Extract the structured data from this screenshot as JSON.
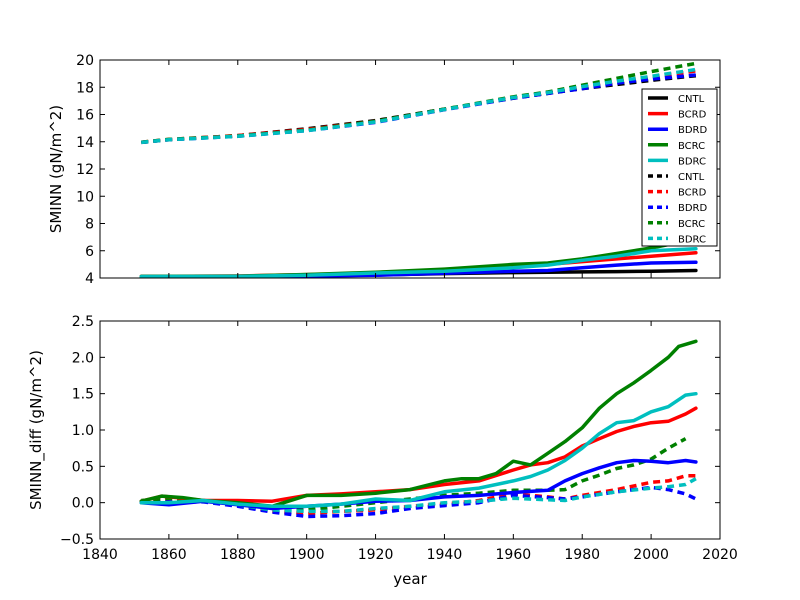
{
  "chart_data": [
    {
      "type": "line",
      "ylabel": "SMINN (gN/m^2)",
      "xlim": [
        1840,
        2020
      ],
      "ylim": [
        4,
        20
      ],
      "yticks": [
        4,
        6,
        8,
        10,
        12,
        14,
        16,
        18,
        20
      ],
      "ytick_labels": [
        "4",
        "6",
        "8",
        "10",
        "12",
        "14",
        "16",
        "18",
        "20"
      ],
      "legend": {
        "position": "right"
      },
      "series": [
        {
          "name": "CNTL",
          "color": "#000000",
          "style": "solid",
          "x": [
            1852,
            1880,
            1900,
            1920,
            1940,
            1960,
            1970,
            1980,
            1990,
            2000,
            2013
          ],
          "y": [
            4.1,
            4.12,
            4.15,
            4.22,
            4.32,
            4.4,
            4.42,
            4.45,
            4.47,
            4.5,
            4.55
          ]
        },
        {
          "name": "BCRD",
          "color": "#ff0000",
          "style": "solid",
          "x": [
            1852,
            1880,
            1900,
            1920,
            1940,
            1960,
            1970,
            1980,
            1990,
            2000,
            2013
          ],
          "y": [
            4.12,
            4.15,
            4.25,
            4.37,
            4.6,
            4.9,
            5.0,
            5.2,
            5.4,
            5.6,
            5.85
          ]
        },
        {
          "name": "BDRD",
          "color": "#0000ff",
          "style": "solid",
          "x": [
            1852,
            1880,
            1900,
            1920,
            1940,
            1960,
            1970,
            1980,
            1990,
            2000,
            2013
          ],
          "y": [
            4.1,
            4.11,
            4.15,
            4.2,
            4.35,
            4.5,
            4.55,
            4.75,
            4.95,
            5.1,
            5.15
          ]
        },
        {
          "name": "BCRC",
          "color": "#008000",
          "style": "solid",
          "x": [
            1852,
            1880,
            1900,
            1920,
            1940,
            1960,
            1970,
            1980,
            1990,
            2000,
            2013
          ],
          "y": [
            4.12,
            4.14,
            4.26,
            4.42,
            4.65,
            5.0,
            5.1,
            5.4,
            5.8,
            6.2,
            6.85
          ]
        },
        {
          "name": "BDRC",
          "color": "#00bfbf",
          "style": "solid",
          "x": [
            1852,
            1880,
            1900,
            1920,
            1940,
            1960,
            1970,
            1980,
            1990,
            2000,
            2013
          ],
          "y": [
            4.1,
            4.12,
            4.2,
            4.37,
            4.5,
            4.75,
            4.95,
            5.3,
            5.6,
            6.0,
            6.15
          ]
        },
        {
          "name": "CNTL",
          "color": "#000000",
          "style": "dashed",
          "x": [
            1852,
            1860,
            1880,
            1900,
            1920,
            1940,
            1960,
            1970,
            1980,
            1990,
            2000,
            2013
          ],
          "y": [
            13.95,
            14.15,
            14.45,
            14.95,
            15.55,
            16.4,
            17.2,
            17.55,
            17.9,
            18.2,
            18.5,
            18.85
          ]
        },
        {
          "name": "BCRD",
          "color": "#ff0000",
          "style": "dashed",
          "x": [
            1852,
            1860,
            1880,
            1900,
            1920,
            1940,
            1960,
            1970,
            1980,
            1990,
            2000,
            2013
          ],
          "y": [
            13.97,
            14.17,
            14.45,
            14.9,
            15.5,
            16.37,
            17.25,
            17.6,
            18.0,
            18.4,
            18.75,
            19.2
          ]
        },
        {
          "name": "BDRD",
          "color": "#0000ff",
          "style": "dashed",
          "x": [
            1852,
            1860,
            1880,
            1900,
            1920,
            1940,
            1960,
            1970,
            1980,
            1990,
            2000,
            2013
          ],
          "y": [
            13.95,
            14.15,
            14.4,
            14.82,
            15.42,
            16.35,
            17.2,
            17.55,
            17.9,
            18.3,
            18.6,
            18.9
          ]
        },
        {
          "name": "BCRC",
          "color": "#008000",
          "style": "dashed",
          "x": [
            1852,
            1860,
            1880,
            1900,
            1920,
            1940,
            1960,
            1970,
            1980,
            1990,
            2000,
            2013
          ],
          "y": [
            13.97,
            14.17,
            14.42,
            14.85,
            15.5,
            16.4,
            17.3,
            17.65,
            18.15,
            18.65,
            19.15,
            19.75
          ]
        },
        {
          "name": "BDRC",
          "color": "#00bfbf",
          "style": "dashed",
          "x": [
            1852,
            1860,
            1880,
            1900,
            1920,
            1940,
            1960,
            1970,
            1980,
            1990,
            2000,
            2013
          ],
          "y": [
            13.95,
            14.15,
            14.4,
            14.82,
            15.45,
            16.37,
            17.25,
            17.6,
            18.05,
            18.45,
            18.8,
            19.3
          ]
        }
      ]
    },
    {
      "type": "line",
      "xlabel": "year",
      "ylabel": "SMINN_diff (gN/m^2)",
      "xlim": [
        1840,
        2020
      ],
      "ylim": [
        -0.5,
        2.5
      ],
      "xticks": [
        1840,
        1860,
        1880,
        1900,
        1920,
        1940,
        1960,
        1980,
        2000,
        2020
      ],
      "xtick_labels": [
        "1840",
        "1860",
        "1880",
        "1900",
        "1920",
        "1940",
        "1960",
        "1980",
        "2000",
        "2020"
      ],
      "yticks": [
        -0.5,
        0.0,
        0.5,
        1.0,
        1.5,
        2.0,
        2.5
      ],
      "ytick_labels": [
        "−0.5",
        "0.0",
        "0.5",
        "1.0",
        "1.5",
        "2.0",
        "2.5"
      ],
      "series": [
        {
          "name": "BCRD",
          "color": "#ff0000",
          "style": "solid",
          "x": [
            1852,
            1858,
            1864,
            1870,
            1880,
            1890,
            1900,
            1910,
            1920,
            1930,
            1940,
            1950,
            1960,
            1965,
            1970,
            1975,
            1980,
            1985,
            1990,
            1995,
            2000,
            2005,
            2010,
            2013
          ],
          "y": [
            0.02,
            0.09,
            0.06,
            0.03,
            0.03,
            0.02,
            0.1,
            0.12,
            0.15,
            0.18,
            0.25,
            0.3,
            0.45,
            0.52,
            0.55,
            0.63,
            0.78,
            0.88,
            0.98,
            1.05,
            1.1,
            1.12,
            1.22,
            1.3
          ]
        },
        {
          "name": "BDRD",
          "color": "#0000ff",
          "style": "solid",
          "x": [
            1852,
            1860,
            1870,
            1880,
            1890,
            1900,
            1910,
            1920,
            1930,
            1940,
            1950,
            1960,
            1970,
            1975,
            1980,
            1985,
            1990,
            1995,
            2000,
            2005,
            2010,
            2013
          ],
          "y": [
            0.0,
            -0.03,
            0.02,
            -0.03,
            -0.08,
            -0.05,
            -0.02,
            0.02,
            0.03,
            0.08,
            0.1,
            0.14,
            0.17,
            0.3,
            0.4,
            0.48,
            0.55,
            0.58,
            0.57,
            0.55,
            0.58,
            0.56
          ]
        },
        {
          "name": "BCRC",
          "color": "#008000",
          "style": "solid",
          "x": [
            1852,
            1858,
            1864,
            1870,
            1880,
            1890,
            1900,
            1910,
            1920,
            1930,
            1940,
            1945,
            1950,
            1955,
            1960,
            1965,
            1970,
            1975,
            1980,
            1985,
            1990,
            1995,
            2000,
            2005,
            2008,
            2013
          ],
          "y": [
            0.02,
            0.09,
            0.07,
            0.03,
            0.0,
            -0.05,
            0.1,
            0.1,
            0.13,
            0.18,
            0.3,
            0.33,
            0.33,
            0.4,
            0.57,
            0.52,
            0.68,
            0.84,
            1.03,
            1.3,
            1.5,
            1.65,
            1.82,
            2.0,
            2.15,
            2.22
          ]
        },
        {
          "name": "BDRC",
          "color": "#00bfbf",
          "style": "solid",
          "x": [
            1852,
            1860,
            1870,
            1880,
            1890,
            1900,
            1910,
            1920,
            1930,
            1940,
            1950,
            1960,
            1965,
            1970,
            1975,
            1980,
            1985,
            1990,
            1995,
            2000,
            2005,
            2010,
            2013
          ],
          "y": [
            0.0,
            0.0,
            0.03,
            -0.02,
            -0.05,
            -0.05,
            -0.02,
            0.05,
            0.03,
            0.15,
            0.2,
            0.3,
            0.36,
            0.45,
            0.58,
            0.75,
            0.95,
            1.1,
            1.13,
            1.25,
            1.32,
            1.48,
            1.5
          ]
        },
        {
          "name": "BCRD",
          "color": "#ff0000",
          "style": "dashed",
          "x": [
            1852,
            1860,
            1870,
            1880,
            1890,
            1900,
            1910,
            1920,
            1930,
            1940,
            1950,
            1960,
            1970,
            1975,
            1980,
            1990,
            2000,
            2005,
            2010,
            2013
          ],
          "y": [
            0.02,
            0.05,
            0.03,
            -0.03,
            -0.12,
            -0.15,
            -0.12,
            -0.1,
            -0.05,
            -0.02,
            0.03,
            0.12,
            0.08,
            0.05,
            0.1,
            0.18,
            0.28,
            0.3,
            0.37,
            0.37
          ]
        },
        {
          "name": "BDRD",
          "color": "#0000ff",
          "style": "dashed",
          "x": [
            1852,
            1860,
            1870,
            1880,
            1890,
            1900,
            1910,
            1920,
            1930,
            1940,
            1950,
            1960,
            1970,
            1975,
            1980,
            1990,
            2000,
            2005,
            2010,
            2013
          ],
          "y": [
            0.0,
            0.01,
            0.01,
            -0.05,
            -0.13,
            -0.19,
            -0.18,
            -0.15,
            -0.08,
            -0.04,
            0.0,
            0.1,
            0.07,
            0.05,
            0.08,
            0.15,
            0.21,
            0.18,
            0.12,
            0.05
          ]
        },
        {
          "name": "BCRC",
          "color": "#008000",
          "style": "dashed",
          "x": [
            1852,
            1860,
            1870,
            1880,
            1890,
            1900,
            1910,
            1920,
            1930,
            1940,
            1950,
            1960,
            1970,
            1975,
            1980,
            1985,
            1990,
            1995,
            2000,
            2005,
            2010
          ],
          "y": [
            0.03,
            0.06,
            0.03,
            -0.03,
            -0.1,
            -0.1,
            -0.05,
            0.0,
            0.05,
            0.1,
            0.13,
            0.17,
            0.17,
            0.18,
            0.3,
            0.38,
            0.47,
            0.52,
            0.6,
            0.75,
            0.88
          ]
        },
        {
          "name": "BDRC",
          "color": "#00bfbf",
          "style": "dashed",
          "x": [
            1852,
            1860,
            1870,
            1880,
            1890,
            1900,
            1910,
            1920,
            1930,
            1940,
            1950,
            1960,
            1970,
            1975,
            1980,
            1990,
            2000,
            2005,
            2010,
            2013
          ],
          "y": [
            0.0,
            0.0,
            0.02,
            -0.03,
            -0.1,
            -0.12,
            -0.12,
            -0.08,
            -0.05,
            0.0,
            0.02,
            0.06,
            0.04,
            0.03,
            0.08,
            0.15,
            0.2,
            0.22,
            0.25,
            0.33
          ]
        }
      ]
    }
  ]
}
